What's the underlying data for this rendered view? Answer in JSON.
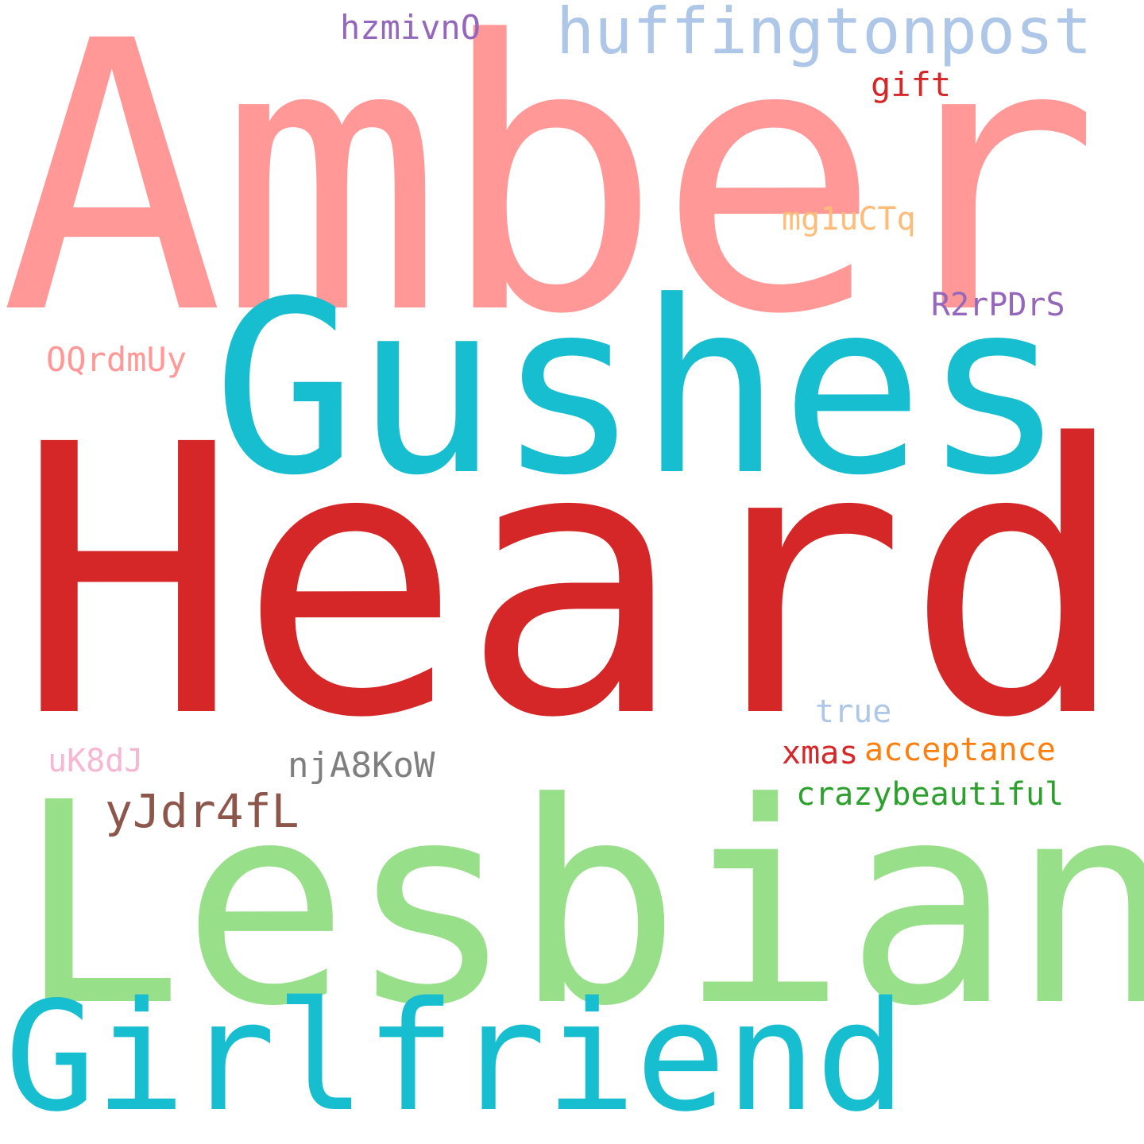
{
  "words": {
    "amber": {
      "text": "Amber",
      "color": "#ff9896"
    },
    "heard": {
      "text": "Heard",
      "color": "#d62728"
    },
    "gushes": {
      "text": "Gushes",
      "color": "#17becf"
    },
    "lesbian": {
      "text": "Lesbian",
      "color": "#98df8a"
    },
    "girlfriend": {
      "text": "Girlfriend",
      "color": "#17becf"
    },
    "huffingtonpost": {
      "text": "huffingtonpost",
      "color": "#aec7e8"
    },
    "hzmivnO": {
      "text": "hzmivnO",
      "color": "#9467bd"
    },
    "gift": {
      "text": "gift",
      "color": "#d62728"
    },
    "mg1uCTq": {
      "text": "mg1uCTq",
      "color": "#ffbb78"
    },
    "R2rPDrS": {
      "text": "R2rPDrS",
      "color": "#9467bd"
    },
    "OQrdmUy": {
      "text": "OQrdmUy",
      "color": "#ff9896"
    },
    "true": {
      "text": "true",
      "color": "#aec7e8"
    },
    "xmas": {
      "text": "xmas",
      "color": "#d62728"
    },
    "acceptance": {
      "text": "acceptance",
      "color": "#ff7f0e"
    },
    "uK8dJ": {
      "text": "uK8dJ",
      "color": "#f7b6d2"
    },
    "njA8KoW": {
      "text": "njA8KoW",
      "color": "#7f7f7f"
    },
    "crazybeautiful": {
      "text": "crazybeautiful",
      "color": "#2ca02c"
    },
    "yJdr4fL": {
      "text": "yJdr4fL",
      "color": "#8c564b"
    }
  }
}
